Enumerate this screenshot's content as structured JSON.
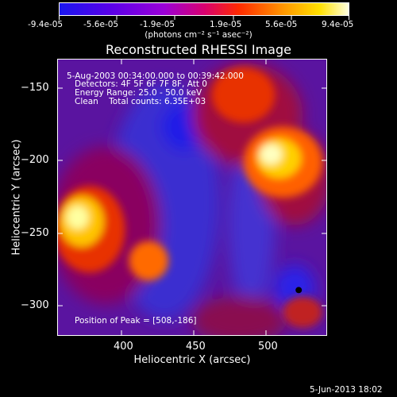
{
  "colorbar": {
    "tick_labels": [
      "-9.4e-05",
      "-5.6e-05",
      "-1.9e-05",
      "1.9e-05",
      "5.6e-05",
      "9.4e-05"
    ],
    "units": "(photons cm⁻² s⁻¹ asec⁻²)",
    "colors": [
      "#1a16f0",
      "#6a00e0",
      "#b000d0",
      "#e00030",
      "#ff7000",
      "#ffd000",
      "#ffffd8"
    ]
  },
  "plot": {
    "title": "Reconstructed RHESSI Image",
    "info_lines": [
      "5-Aug-2003 00:34:00.000 to 00:39:42.000",
      "Detectors: 4F 5F 6F 7F 8F, Att 0",
      "Energy Range: 25.0 - 50.0 keV",
      "Clean    Total counts: 6.35E+03"
    ],
    "peak_label": "Position of Peak = [508,-186]",
    "xlabel": "Heliocentric X (arcsec)",
    "ylabel": "Heliocentric Y (arcsec)",
    "x_ticks": [
      "400",
      "450",
      "500"
    ],
    "y_ticks": [
      "−150",
      "−200",
      "−250",
      "−300"
    ]
  },
  "footer": {
    "date": "5-Jun-2013 18:02"
  }
}
